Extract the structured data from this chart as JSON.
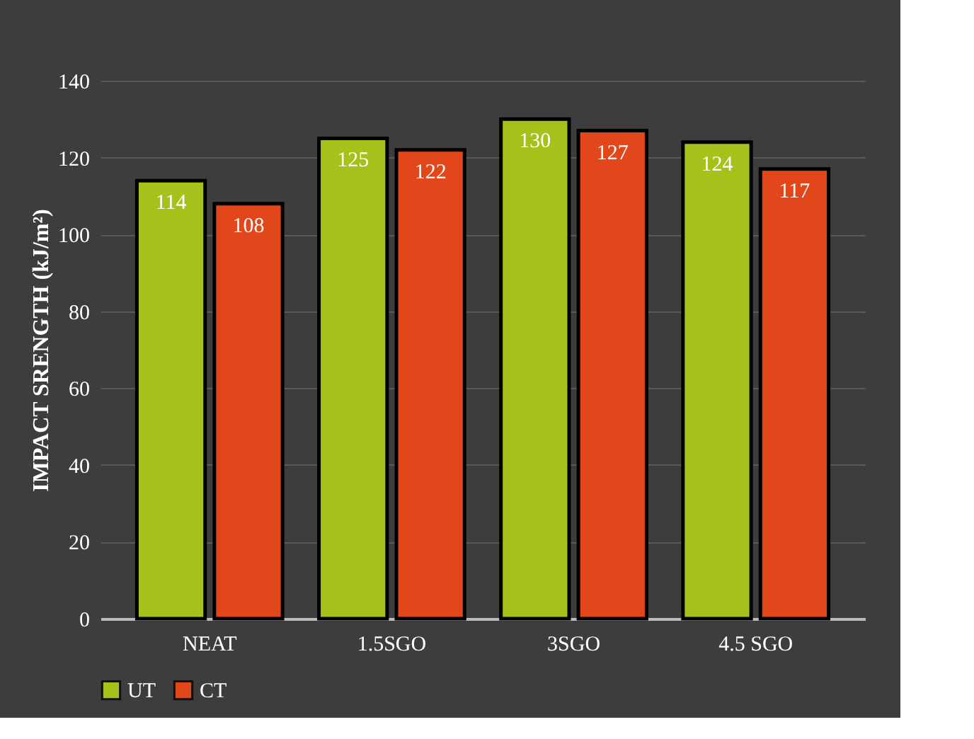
{
  "chart_data": {
    "type": "bar",
    "ylabel": "IMPACT SRENGTH (kJ/m²)",
    "categories": [
      "NEAT",
      "1.5SGO",
      "3SGO",
      "4.5 SGO"
    ],
    "series": [
      {
        "name": "UT",
        "color": "#a4c21a",
        "values": [
          114,
          125,
          130,
          124
        ]
      },
      {
        "name": "CT",
        "color": "#e2471b",
        "values": [
          108,
          122,
          127,
          117
        ]
      }
    ],
    "ylim": [
      0,
      140
    ],
    "yticks": [
      0,
      20,
      40,
      60,
      80,
      100,
      120,
      140
    ],
    "grid": "y",
    "legend": "bottom",
    "data_labels": true
  }
}
